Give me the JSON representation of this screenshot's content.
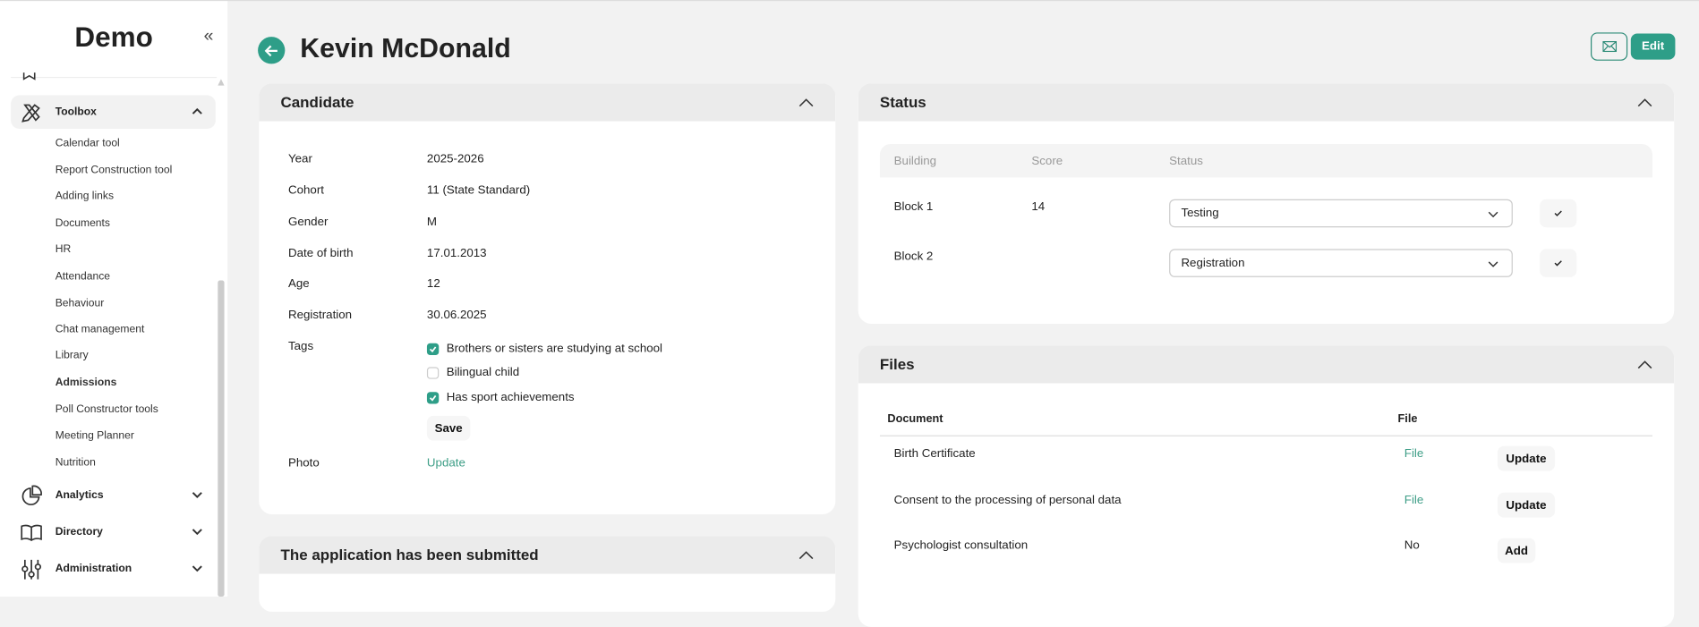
{
  "sidebar": {
    "brand": "Demo",
    "toolbox": {
      "label": "Toolbox",
      "items": [
        "Calendar tool",
        "Report Construction tool",
        "Adding links",
        "Documents",
        "HR",
        "Attendance",
        "Behaviour",
        "Chat management",
        "Library",
        "Admissions",
        "Poll Constructor tools",
        "Meeting Planner",
        "Nutrition"
      ],
      "active_item": "Admissions"
    },
    "groups": [
      {
        "label": "Analytics"
      },
      {
        "label": "Directory"
      },
      {
        "label": "Administration"
      }
    ]
  },
  "header": {
    "title": "Kevin McDonald",
    "edit_label": "Edit"
  },
  "colors": {
    "accent": "#2e9e88"
  },
  "candidate": {
    "title": "Candidate",
    "fields": [
      {
        "label": "Year",
        "value": "2025-2026"
      },
      {
        "label": "Cohort",
        "value": "11 (State Standard)"
      },
      {
        "label": "Gender",
        "value": "M"
      },
      {
        "label": "Date of birth",
        "value": "17.01.2013"
      },
      {
        "label": "Age",
        "value": "12"
      },
      {
        "label": "Registration",
        "value": "30.06.2025"
      }
    ],
    "tags_label": "Tags",
    "tags": [
      {
        "label": "Brothers or sisters are studying at school",
        "checked": true
      },
      {
        "label": "Bilingual child",
        "checked": false
      },
      {
        "label": "Has sport achievements",
        "checked": true
      }
    ],
    "save_label": "Save",
    "photo_label": "Photo",
    "photo_action": "Update"
  },
  "application": {
    "title": "The application has been submitted"
  },
  "status": {
    "title": "Status",
    "columns": [
      "Building",
      "Score",
      "Status"
    ],
    "rows": [
      {
        "building": "Block 1",
        "score": "14",
        "status": "Testing"
      },
      {
        "building": "Block 2",
        "score": "",
        "status": "Registration"
      }
    ]
  },
  "files": {
    "title": "Files",
    "columns": [
      "Document",
      "File"
    ],
    "rows": [
      {
        "document": "Birth Certificate",
        "file": "File",
        "action": "Update"
      },
      {
        "document": "Consent to the processing of personal data",
        "file": "File",
        "action": "Update"
      },
      {
        "document": "Psychologist consultation",
        "file": "No",
        "action": "Add"
      }
    ]
  }
}
